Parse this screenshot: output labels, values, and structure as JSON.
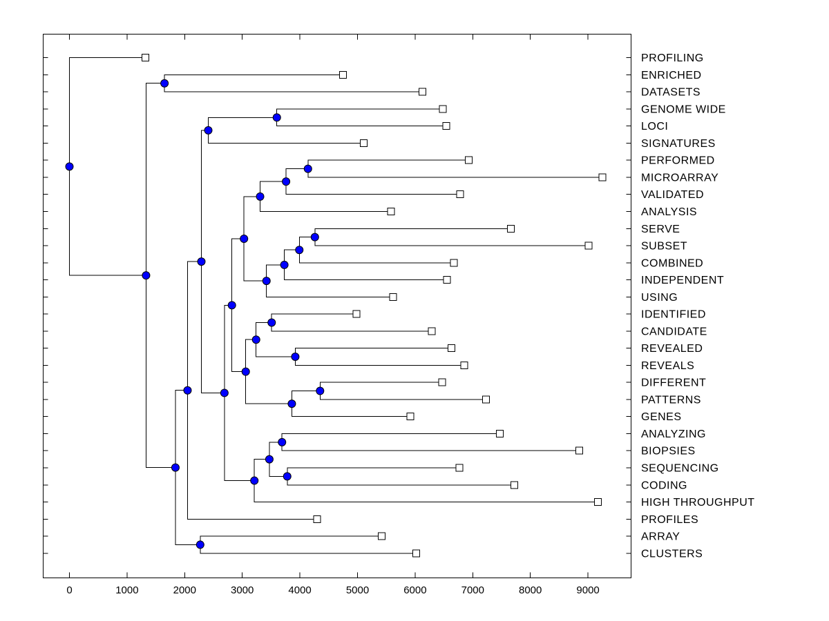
{
  "figure": {
    "background": "#ffffff"
  },
  "chart_data": {
    "type": "dendrogram",
    "orientation": "horizontal_left_root",
    "title": "",
    "xlabel": "",
    "ylabel": "",
    "grid": false,
    "x_axis": {
      "ticks": [
        0,
        1000,
        2000,
        3000,
        4000,
        5000,
        6000,
        7000,
        8000,
        9000
      ],
      "range": [
        -456,
        9754
      ]
    },
    "leaves": [
      {
        "label": "PROFILING",
        "distance": 1320
      },
      {
        "label": "ENRICHED",
        "distance": 4750
      },
      {
        "label": "DATASETS",
        "distance": 6130
      },
      {
        "label": "GENOME WIDE",
        "distance": 6480
      },
      {
        "label": "LOCI",
        "distance": 6540
      },
      {
        "label": "SIGNATURES",
        "distance": 5110
      },
      {
        "label": "PERFORMED",
        "distance": 6930
      },
      {
        "label": "MICROARRAY",
        "distance": 9250
      },
      {
        "label": "VALIDATED",
        "distance": 6780
      },
      {
        "label": "ANALYSIS",
        "distance": 5580
      },
      {
        "label": "SERVE",
        "distance": 7660
      },
      {
        "label": "SUBSET",
        "distance": 9010
      },
      {
        "label": "COMBINED",
        "distance": 6670
      },
      {
        "label": "INDEPENDENT",
        "distance": 6550
      },
      {
        "label": "USING",
        "distance": 5620
      },
      {
        "label": "IDENTIFIED",
        "distance": 4980
      },
      {
        "label": "CANDIDATE",
        "distance": 6290
      },
      {
        "label": "REVEALED",
        "distance": 6630
      },
      {
        "label": "REVEALS",
        "distance": 6850
      },
      {
        "label": "DIFFERENT",
        "distance": 6470
      },
      {
        "label": "PATTERNS",
        "distance": 7230
      },
      {
        "label": "GENES",
        "distance": 5920
      },
      {
        "label": "ANALYZING",
        "distance": 7470
      },
      {
        "label": "BIOPSIES",
        "distance": 8850
      },
      {
        "label": "SEQUENCING",
        "distance": 6770
      },
      {
        "label": "CODING",
        "distance": 7720
      },
      {
        "label": "HIGH THROUGHPUT",
        "distance": 9170
      },
      {
        "label": "PROFILES",
        "distance": 4300
      },
      {
        "label": "ARRAY",
        "distance": 5420
      },
      {
        "label": "CLUSTERS",
        "distance": 6020
      }
    ],
    "merges": [
      {
        "id": "M0",
        "a": "L1",
        "b": "L2",
        "distance": 1650
      },
      {
        "id": "M1",
        "a": "L3",
        "b": "L4",
        "distance": 3600
      },
      {
        "id": "M2",
        "a": "M1",
        "b": "L5",
        "distance": 2410
      },
      {
        "id": "M3",
        "a": "L6",
        "b": "L7",
        "distance": 4140
      },
      {
        "id": "M4",
        "a": "M3",
        "b": "L8",
        "distance": 3760
      },
      {
        "id": "M5",
        "a": "M4",
        "b": "L9",
        "distance": 3310
      },
      {
        "id": "M6",
        "a": "L10",
        "b": "L11",
        "distance": 4260
      },
      {
        "id": "M7",
        "a": "M6",
        "b": "L12",
        "distance": 3990
      },
      {
        "id": "M8",
        "a": "M7",
        "b": "L13",
        "distance": 3730
      },
      {
        "id": "M9",
        "a": "M8",
        "b": "L14",
        "distance": 3420
      },
      {
        "id": "M10",
        "a": "M5",
        "b": "M9",
        "distance": 3030
      },
      {
        "id": "M11",
        "a": "L15",
        "b": "L16",
        "distance": 3510
      },
      {
        "id": "M12",
        "a": "L17",
        "b": "L18",
        "distance": 3920
      },
      {
        "id": "M13",
        "a": "M11",
        "b": "M12",
        "distance": 3240
      },
      {
        "id": "M14",
        "a": "L19",
        "b": "L20",
        "distance": 4350
      },
      {
        "id": "M15",
        "a": "M14",
        "b": "L21",
        "distance": 3860
      },
      {
        "id": "M16",
        "a": "M13",
        "b": "M15",
        "distance": 3060
      },
      {
        "id": "M17",
        "a": "M10",
        "b": "M16",
        "distance": 2820
      },
      {
        "id": "M18",
        "a": "L22",
        "b": "L23",
        "distance": 3690
      },
      {
        "id": "M19",
        "a": "L24",
        "b": "L25",
        "distance": 3780
      },
      {
        "id": "M20",
        "a": "M18",
        "b": "M19",
        "distance": 3470
      },
      {
        "id": "M21",
        "a": "M20",
        "b": "L26",
        "distance": 3210
      },
      {
        "id": "M22",
        "a": "M17",
        "b": "M21",
        "distance": 2690
      },
      {
        "id": "M23",
        "a": "M2",
        "b": "M22",
        "distance": 2290
      },
      {
        "id": "M24",
        "a": "M23",
        "b": "L27",
        "distance": 2050
      },
      {
        "id": "M25",
        "a": "L28",
        "b": "L29",
        "distance": 2270
      },
      {
        "id": "M26",
        "a": "M24",
        "b": "M25",
        "distance": 1840
      },
      {
        "id": "M27",
        "a": "M0",
        "b": "M26",
        "distance": 1330
      },
      {
        "id": "M28",
        "a": "L0",
        "b": "M27",
        "distance": 0
      }
    ],
    "style": {
      "line_color": "#000000",
      "box_color": "#000000",
      "node_fill": "#0000ff",
      "node_edge": "#000000",
      "leaf_marker_fill": "#ffffff",
      "leaf_marker_edge": "#000000",
      "text_color": "#000000"
    }
  }
}
